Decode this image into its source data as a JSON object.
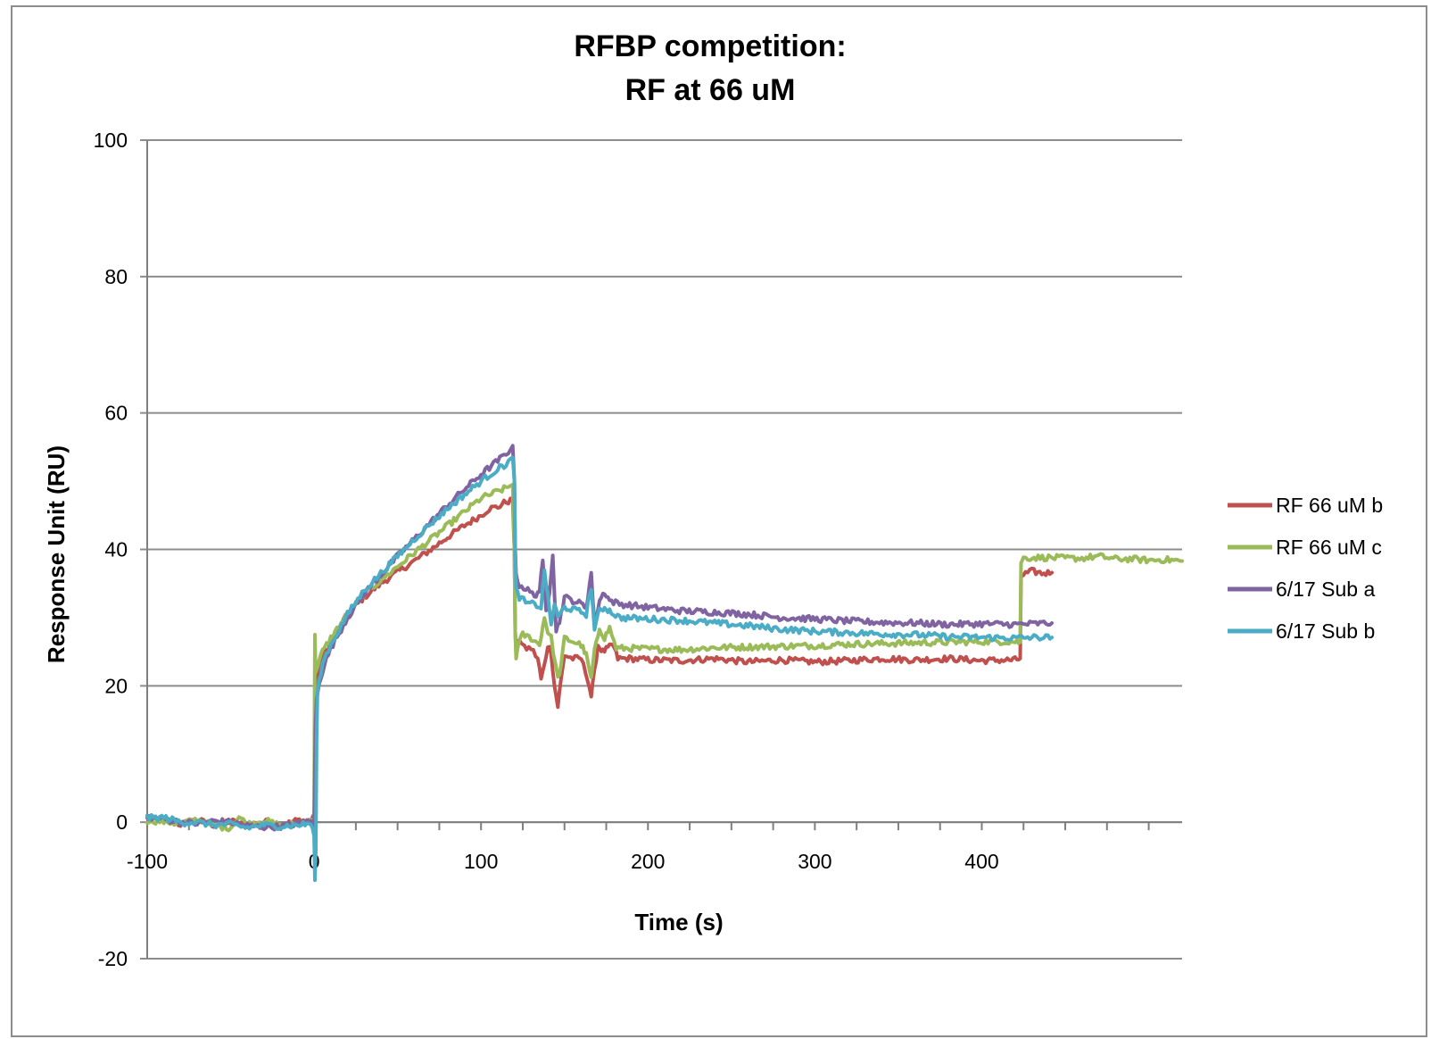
{
  "chart_data": {
    "type": "line",
    "title_line1": "RFBP competition:",
    "title_line2": "RF at 66 uM",
    "xlabel": "Time (s)",
    "ylabel": "Response Unit (RU)",
    "xlim": [
      -100,
      520
    ],
    "ylim": [
      -20,
      100
    ],
    "x_ticks": [
      -100,
      0,
      100,
      200,
      300,
      400
    ],
    "y_ticks": [
      -20,
      0,
      20,
      40,
      60,
      80,
      100
    ],
    "grid": "horizontal",
    "legend_position": "right",
    "series": [
      {
        "name": "RF 66 uM b",
        "color": "#c0504d",
        "points": [
          [
            -100,
            0.5
          ],
          [
            -90,
            0.2
          ],
          [
            -80,
            -0.3
          ],
          [
            -70,
            0.3
          ],
          [
            -60,
            -0.4
          ],
          [
            -50,
            0.2
          ],
          [
            -40,
            -0.6
          ],
          [
            -30,
            0.1
          ],
          [
            -20,
            -0.5
          ],
          [
            -10,
            0.3
          ],
          [
            -2,
            0.2
          ],
          [
            -0.5,
            1.0
          ],
          [
            0,
            -0.5
          ],
          [
            0.3,
            4
          ],
          [
            0.6,
            12
          ],
          [
            1,
            19
          ],
          [
            3,
            22.5
          ],
          [
            6,
            24.5
          ],
          [
            10,
            26.5
          ],
          [
            15,
            28.5
          ],
          [
            20,
            30.5
          ],
          [
            30,
            33
          ],
          [
            40,
            35
          ],
          [
            50,
            36.7
          ],
          [
            60,
            38.3
          ],
          [
            70,
            40
          ],
          [
            80,
            41.8
          ],
          [
            90,
            43.5
          ],
          [
            100,
            45
          ],
          [
            105,
            46
          ],
          [
            110,
            46.2
          ],
          [
            115,
            47
          ],
          [
            119,
            47.2
          ],
          [
            120,
            40
          ],
          [
            120.5,
            28
          ],
          [
            121,
            25
          ],
          [
            123,
            27
          ],
          [
            126,
            25.5
          ],
          [
            130,
            25.5
          ],
          [
            134,
            24
          ],
          [
            136,
            21
          ],
          [
            138,
            23
          ],
          [
            140,
            26
          ],
          [
            142,
            25
          ],
          [
            144,
            20
          ],
          [
            146,
            17
          ],
          [
            148,
            21
          ],
          [
            150,
            24.5
          ],
          [
            155,
            24
          ],
          [
            160,
            24
          ],
          [
            164,
            21
          ],
          [
            166,
            18.5
          ],
          [
            168,
            22
          ],
          [
            170,
            26
          ],
          [
            173,
            25
          ],
          [
            176,
            25.5
          ],
          [
            179,
            26
          ],
          [
            182,
            24
          ],
          [
            190,
            24
          ],
          [
            200,
            23.8
          ],
          [
            220,
            23.7
          ],
          [
            240,
            24
          ],
          [
            260,
            23.5
          ],
          [
            280,
            23.8
          ],
          [
            300,
            23.5
          ],
          [
            320,
            23.7
          ],
          [
            340,
            24
          ],
          [
            360,
            23.8
          ],
          [
            380,
            24
          ],
          [
            400,
            23.7
          ],
          [
            420,
            23.8
          ],
          [
            423,
            24
          ],
          [
            423.5,
            36
          ],
          [
            425,
            36.3
          ],
          [
            430,
            36.8
          ],
          [
            436,
            36.5
          ],
          [
            442,
            36.6
          ]
        ]
      },
      {
        "name": "RF 66 uM c",
        "color": "#9bbb59",
        "points": [
          [
            -100,
            0.3
          ],
          [
            -90,
            0.1
          ],
          [
            -80,
            -0.2
          ],
          [
            -70,
            0.4
          ],
          [
            -60,
            -0.6
          ],
          [
            -50,
            -0.8
          ],
          [
            -45,
            0.8
          ],
          [
            -40,
            -0.3
          ],
          [
            -30,
            0.3
          ],
          [
            -20,
            -0.5
          ],
          [
            -10,
            -0.2
          ],
          [
            -2,
            0.1
          ],
          [
            0,
            -1
          ],
          [
            0.2,
            15
          ],
          [
            0.5,
            27.5
          ],
          [
            0.9,
            22
          ],
          [
            2,
            23
          ],
          [
            5,
            25
          ],
          [
            10,
            27
          ],
          [
            20,
            30.5
          ],
          [
            30,
            33.5
          ],
          [
            40,
            35.5
          ],
          [
            50,
            37.5
          ],
          [
            60,
            39.5
          ],
          [
            70,
            41.5
          ],
          [
            80,
            43.5
          ],
          [
            90,
            45.5
          ],
          [
            100,
            47.5
          ],
          [
            110,
            48.5
          ],
          [
            115,
            49
          ],
          [
            119,
            49.5
          ],
          [
            120,
            40
          ],
          [
            120.5,
            28
          ],
          [
            121,
            24
          ],
          [
            122,
            26
          ],
          [
            125,
            27.5
          ],
          [
            130,
            27
          ],
          [
            135,
            26
          ],
          [
            138,
            30
          ],
          [
            140,
            28
          ],
          [
            142,
            27
          ],
          [
            146,
            21
          ],
          [
            148,
            23
          ],
          [
            150,
            27
          ],
          [
            155,
            26.5
          ],
          [
            160,
            26
          ],
          [
            163,
            24.5
          ],
          [
            166,
            21
          ],
          [
            168,
            25
          ],
          [
            171,
            28.5
          ],
          [
            174,
            27
          ],
          [
            177,
            28.5
          ],
          [
            181,
            25.5
          ],
          [
            190,
            25.5
          ],
          [
            200,
            25.4
          ],
          [
            220,
            25.3
          ],
          [
            240,
            25.6
          ],
          [
            260,
            25.7
          ],
          [
            280,
            25.8
          ],
          [
            300,
            25.9
          ],
          [
            320,
            26.1
          ],
          [
            340,
            26.2
          ],
          [
            360,
            26.3
          ],
          [
            380,
            26.4
          ],
          [
            400,
            26.5
          ],
          [
            410,
            26.5
          ],
          [
            420,
            26.5
          ],
          [
            423,
            26.4
          ],
          [
            423.5,
            38
          ],
          [
            425,
            38.7
          ],
          [
            430,
            38.8
          ],
          [
            440,
            38.8
          ],
          [
            450,
            38.7
          ],
          [
            460,
            38.7
          ],
          [
            470,
            39
          ],
          [
            480,
            38.6
          ],
          [
            490,
            38.6
          ],
          [
            500,
            38.4
          ],
          [
            510,
            38.5
          ],
          [
            520,
            38.3
          ]
        ]
      },
      {
        "name": "6/17 Sub a",
        "color": "#8064a2",
        "points": [
          [
            -100,
            0.8
          ],
          [
            -90,
            0.5
          ],
          [
            -80,
            0
          ],
          [
            -70,
            -0.2
          ],
          [
            -60,
            0.2
          ],
          [
            -50,
            0
          ],
          [
            -40,
            -0.5
          ],
          [
            -30,
            -0.7
          ],
          [
            -20,
            -0.6
          ],
          [
            -10,
            -0.2
          ],
          [
            -2,
            0.1
          ],
          [
            0,
            -1
          ],
          [
            0.3,
            6
          ],
          [
            0.8,
            14
          ],
          [
            1.5,
            18
          ],
          [
            3,
            20.5
          ],
          [
            6,
            23
          ],
          [
            10,
            25.5
          ],
          [
            20,
            30
          ],
          [
            30,
            33.5
          ],
          [
            40,
            36.3
          ],
          [
            50,
            39
          ],
          [
            60,
            41.5
          ],
          [
            70,
            44
          ],
          [
            80,
            46.5
          ],
          [
            90,
            48.8
          ],
          [
            100,
            51
          ],
          [
            110,
            53
          ],
          [
            115,
            54
          ],
          [
            119,
            55.2
          ],
          [
            120,
            50
          ],
          [
            120.5,
            40
          ],
          [
            121,
            36
          ],
          [
            123,
            34.8
          ],
          [
            128,
            34
          ],
          [
            132,
            33.2
          ],
          [
            135,
            34
          ],
          [
            137,
            38
          ],
          [
            139,
            31
          ],
          [
            141,
            34
          ],
          [
            143,
            39.5
          ],
          [
            145,
            28
          ],
          [
            147,
            29.5
          ],
          [
            150,
            33
          ],
          [
            155,
            32.5
          ],
          [
            160,
            32
          ],
          [
            163,
            31.5
          ],
          [
            166,
            36.5
          ],
          [
            168,
            29
          ],
          [
            171,
            32.5
          ],
          [
            174,
            33.8
          ],
          [
            177,
            32.5
          ],
          [
            183,
            32
          ],
          [
            200,
            31.5
          ],
          [
            220,
            31
          ],
          [
            240,
            30.8
          ],
          [
            260,
            30.5
          ],
          [
            280,
            30
          ],
          [
            300,
            29.8
          ],
          [
            320,
            29.5
          ],
          [
            340,
            29.3
          ],
          [
            360,
            29.2
          ],
          [
            380,
            29
          ],
          [
            400,
            29.1
          ],
          [
            420,
            29
          ],
          [
            430,
            29.1
          ],
          [
            442,
            29.2
          ]
        ]
      },
      {
        "name": "6/17 Sub b",
        "color": "#4bacc6",
        "points": [
          [
            -100,
            0.6
          ],
          [
            -90,
            0.7
          ],
          [
            -80,
            0
          ],
          [
            -70,
            0
          ],
          [
            -60,
            -0.4
          ],
          [
            -50,
            -0.3
          ],
          [
            -40,
            -0.8
          ],
          [
            -30,
            -0.4
          ],
          [
            -20,
            -0.6
          ],
          [
            -10,
            -0.4
          ],
          [
            -2,
            -0.2
          ],
          [
            0,
            -2
          ],
          [
            0.5,
            -8.5
          ],
          [
            1,
            -4
          ],
          [
            1.5,
            12
          ],
          [
            2,
            19
          ],
          [
            4,
            22
          ],
          [
            6,
            24
          ],
          [
            10,
            26
          ],
          [
            20,
            30.5
          ],
          [
            30,
            34
          ],
          [
            40,
            36.5
          ],
          [
            50,
            39
          ],
          [
            60,
            41.5
          ],
          [
            70,
            43.8
          ],
          [
            80,
            46
          ],
          [
            90,
            48
          ],
          [
            100,
            50
          ],
          [
            110,
            51.8
          ],
          [
            115,
            52.5
          ],
          [
            119,
            53.5
          ],
          [
            120,
            50
          ],
          [
            120.5,
            40
          ],
          [
            121,
            34
          ],
          [
            123,
            33
          ],
          [
            128,
            32
          ],
          [
            132,
            32
          ],
          [
            136,
            31.5
          ],
          [
            138,
            37
          ],
          [
            140,
            33
          ],
          [
            142,
            29
          ],
          [
            144,
            32
          ],
          [
            146,
            30
          ],
          [
            150,
            31.5
          ],
          [
            155,
            31.2
          ],
          [
            160,
            30.8
          ],
          [
            163,
            30.5
          ],
          [
            166,
            34.5
          ],
          [
            168,
            28.5
          ],
          [
            171,
            31
          ],
          [
            174,
            31.5
          ],
          [
            177,
            31
          ],
          [
            183,
            30
          ],
          [
            200,
            29.8
          ],
          [
            220,
            29.6
          ],
          [
            240,
            29.2
          ],
          [
            260,
            28.8
          ],
          [
            280,
            28.3
          ],
          [
            300,
            28
          ],
          [
            320,
            27.8
          ],
          [
            340,
            27.6
          ],
          [
            360,
            27.5
          ],
          [
            380,
            27.2
          ],
          [
            400,
            27.1
          ],
          [
            420,
            27
          ],
          [
            430,
            27.1
          ],
          [
            442,
            27.1
          ]
        ]
      }
    ]
  }
}
